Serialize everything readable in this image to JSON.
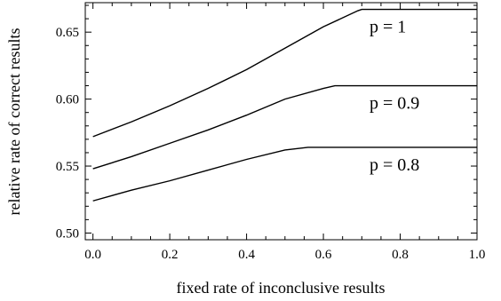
{
  "chart_data": {
    "type": "line",
    "xlabel": "fixed rate of inconclusive results",
    "ylabel": "relative rate of correct results",
    "xlim": [
      -0.02,
      1.0
    ],
    "ylim": [
      0.495,
      0.672
    ],
    "x_ticks": [
      0.0,
      0.2,
      0.4,
      0.6,
      0.8,
      1.0
    ],
    "x_tick_labels": [
      "0.0",
      "0.2",
      "0.4",
      "0.6",
      "0.8",
      "1.0"
    ],
    "y_ticks": [
      0.5,
      0.55,
      0.6,
      0.65
    ],
    "y_tick_labels": [
      "0.50",
      "0.55",
      "0.60",
      "0.65"
    ],
    "grid": false,
    "series": [
      {
        "name": "p = 1",
        "x": [
          0.0,
          0.1,
          0.2,
          0.3,
          0.4,
          0.5,
          0.6,
          0.69,
          0.7,
          0.8,
          0.9,
          1.0
        ],
        "y": [
          0.572,
          0.583,
          0.595,
          0.608,
          0.622,
          0.638,
          0.654,
          0.666,
          0.667,
          0.667,
          0.667,
          0.667
        ]
      },
      {
        "name": "p = 0.9",
        "x": [
          0.0,
          0.1,
          0.2,
          0.3,
          0.4,
          0.5,
          0.6,
          0.63,
          0.7,
          0.8,
          0.9,
          1.0
        ],
        "y": [
          0.548,
          0.557,
          0.567,
          0.577,
          0.588,
          0.6,
          0.608,
          0.61,
          0.61,
          0.61,
          0.61,
          0.61
        ]
      },
      {
        "name": "p = 0.8",
        "x": [
          0.0,
          0.1,
          0.2,
          0.3,
          0.4,
          0.5,
          0.56,
          0.6,
          0.7,
          0.8,
          0.9,
          1.0
        ],
        "y": [
          0.524,
          0.532,
          0.539,
          0.547,
          0.555,
          0.562,
          0.564,
          0.564,
          0.564,
          0.564,
          0.564,
          0.564
        ]
      }
    ]
  }
}
